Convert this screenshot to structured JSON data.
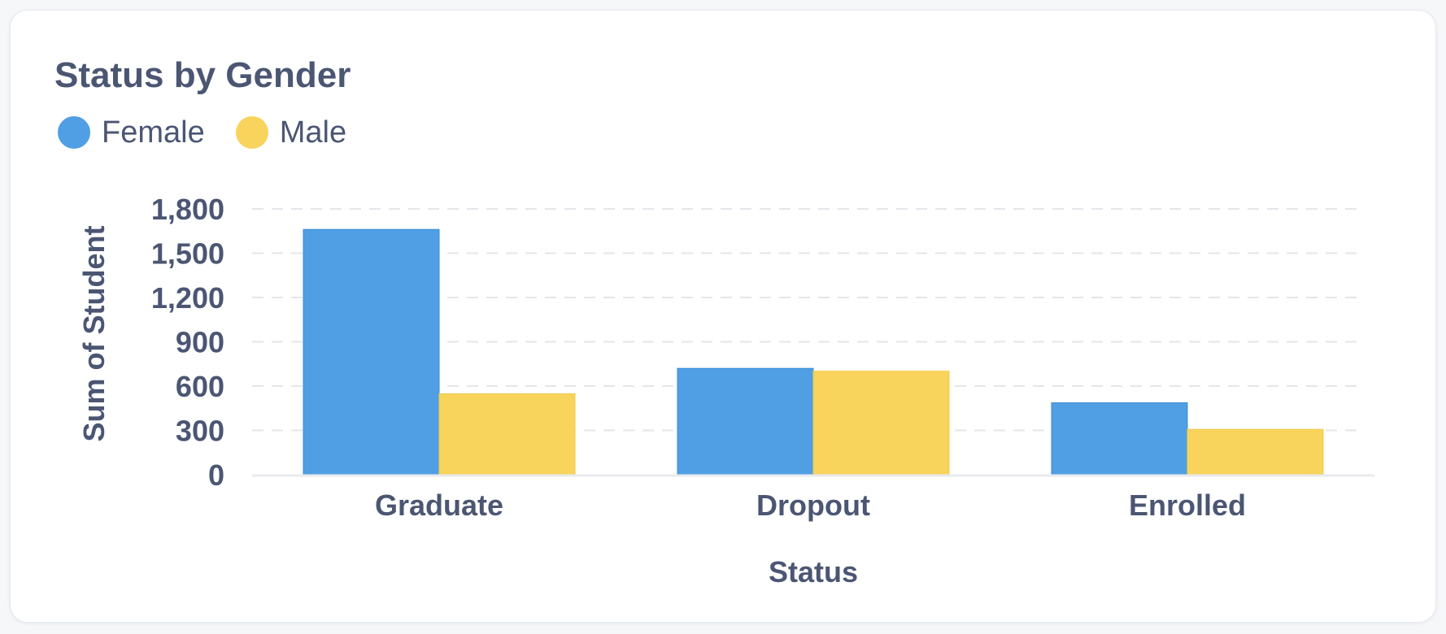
{
  "card": {
    "title": "Status by Gender"
  },
  "chart_data": {
    "type": "bar",
    "title": "Status by Gender",
    "xlabel": "Status",
    "ylabel": "Sum of Student",
    "categories": [
      "Graduate",
      "Dropout",
      "Enrolled"
    ],
    "series": [
      {
        "name": "Female",
        "color": "#509ee3",
        "values": [
          1661,
          720,
          487
        ]
      },
      {
        "name": "Male",
        "color": "#f9d45c",
        "values": [
          548,
          701,
          307
        ]
      }
    ],
    "ylim": [
      0,
      1800
    ],
    "yticks": [
      0,
      300,
      600,
      900,
      1200,
      1500,
      1800
    ],
    "ytick_labels": [
      "0",
      "300",
      "600",
      "900",
      "1,200",
      "1,500",
      "1,800"
    ],
    "grid": true,
    "legend_position": "top-left"
  }
}
